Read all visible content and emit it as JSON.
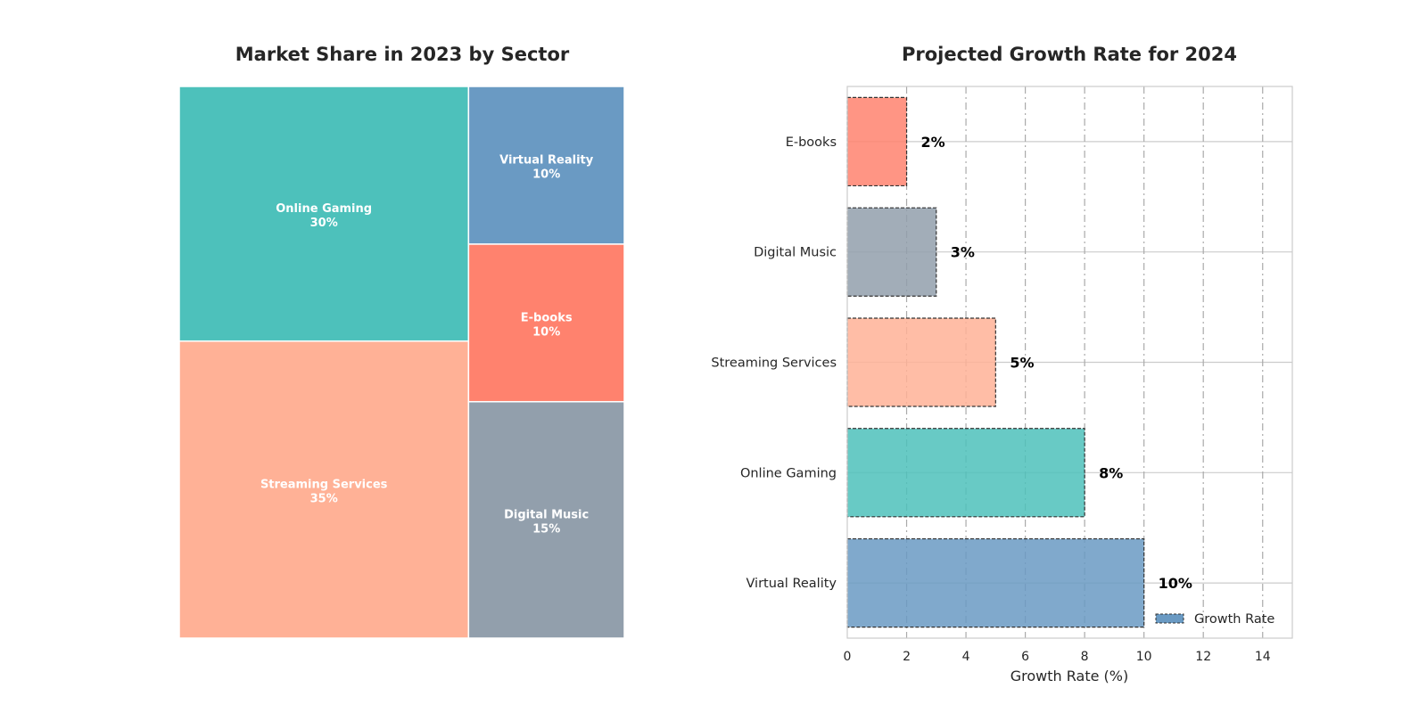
{
  "chart_data": [
    {
      "type": "treemap",
      "title": "Market Share in 2023 by Sector",
      "items": [
        {
          "label": "Streaming Services",
          "value": 35,
          "value_label": "35%",
          "color": "#FFB196"
        },
        {
          "label": "Online Gaming",
          "value": 30,
          "value_label": "30%",
          "color": "#4DC1BB"
        },
        {
          "label": "Digital Music",
          "value": 15,
          "value_label": "15%",
          "color": "#929FAC"
        },
        {
          "label": "E-books",
          "value": 10,
          "value_label": "10%",
          "color": "#FF826E"
        },
        {
          "label": "Virtual Reality",
          "value": 10,
          "value_label": "10%",
          "color": "#6A9AC3"
        }
      ]
    },
    {
      "type": "bar",
      "orientation": "horizontal",
      "title": "Projected Growth Rate for 2024",
      "categories": [
        "Virtual Reality",
        "Online Gaming",
        "Streaming Services",
        "Digital Music",
        "E-books"
      ],
      "values": [
        10,
        8,
        5,
        3,
        2
      ],
      "data_labels": [
        "10%",
        "8%",
        "5%",
        "3%",
        "2%"
      ],
      "colors": [
        "#6A9AC3",
        "#4DC1BB",
        "#FFB196",
        "#929FAC",
        "#FF826E"
      ],
      "xlabel": "Growth Rate (%)",
      "ylabel": "",
      "xlim": [
        0,
        15
      ],
      "xticks": [
        "0",
        "2",
        "4",
        "6",
        "8",
        "10",
        "12",
        "14"
      ],
      "legend": {
        "label": "Growth Rate",
        "position": "lower-right"
      },
      "grid": true
    }
  ]
}
